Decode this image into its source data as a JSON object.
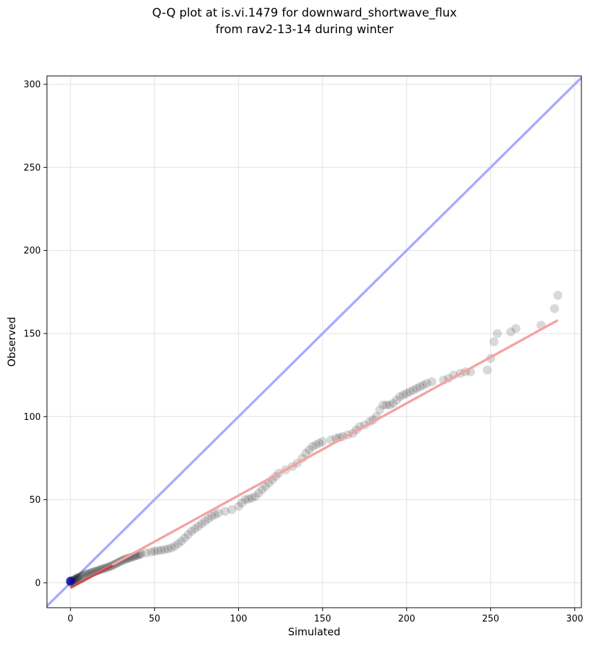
{
  "chart_data": {
    "type": "scatter",
    "title": "Q-Q plot at is.vi.1479 for downward_shortwave_flux",
    "subtitle": "from rav2-13-14 during winter",
    "xlabel": "Simulated",
    "ylabel": "Observed",
    "xlim": [
      -14,
      304
    ],
    "ylim": [
      -15,
      305
    ],
    "xticks": [
      0,
      50,
      100,
      150,
      200,
      250,
      300
    ],
    "yticks": [
      0,
      50,
      100,
      150,
      200,
      250,
      300
    ],
    "grid": true,
    "reference_line": {
      "from": [
        -14,
        -14
      ],
      "to": [
        304,
        304
      ],
      "color": "#aaaaff"
    },
    "fit_line": {
      "from": [
        0,
        -3
      ],
      "to": [
        290,
        158
      ],
      "color": "#f4a3a3"
    },
    "colors": {
      "points": "#000000",
      "blue_point": "#0000aa",
      "red_seg": "#aa0000"
    },
    "points": [
      [
        0,
        0
      ],
      [
        0.5,
        0.5
      ],
      [
        1,
        1
      ],
      [
        1.5,
        1.2
      ],
      [
        2,
        1.5
      ],
      [
        2.5,
        2
      ],
      [
        3,
        2.2
      ],
      [
        3.5,
        2.5
      ],
      [
        4,
        2.8
      ],
      [
        4.5,
        3
      ],
      [
        5,
        3.3
      ],
      [
        6,
        3.8
      ],
      [
        7,
        4.2
      ],
      [
        8,
        4.6
      ],
      [
        9,
        5
      ],
      [
        10,
        5.3
      ],
      [
        11,
        5.6
      ],
      [
        12,
        6
      ],
      [
        13,
        6.3
      ],
      [
        14,
        6.6
      ],
      [
        15,
        7
      ],
      [
        16,
        7.3
      ],
      [
        17,
        7.6
      ],
      [
        18,
        8
      ],
      [
        19,
        8.3
      ],
      [
        20,
        8.6
      ],
      [
        21,
        9
      ],
      [
        22,
        9.3
      ],
      [
        23,
        9.7
      ],
      [
        24,
        10
      ],
      [
        25,
        10.5
      ],
      [
        26,
        11
      ],
      [
        27,
        11.5
      ],
      [
        28,
        12
      ],
      [
        29,
        12.5
      ],
      [
        30,
        13
      ],
      [
        31,
        13.5
      ],
      [
        32,
        14
      ],
      [
        33,
        14.3
      ],
      [
        34,
        14.6
      ],
      [
        35,
        15
      ],
      [
        36,
        15.3
      ],
      [
        37,
        15.6
      ],
      [
        38,
        16
      ],
      [
        39,
        16.3
      ],
      [
        40,
        16.6
      ],
      [
        41,
        17
      ],
      [
        42,
        17.3
      ],
      [
        45,
        18
      ],
      [
        48,
        18.5
      ],
      [
        50,
        19
      ],
      [
        52,
        19.3
      ],
      [
        54,
        19.6
      ],
      [
        56,
        20
      ],
      [
        58,
        20.3
      ],
      [
        60,
        21
      ],
      [
        62,
        22
      ],
      [
        64,
        23.5
      ],
      [
        66,
        25
      ],
      [
        68,
        27
      ],
      [
        70,
        29
      ],
      [
        72,
        31
      ],
      [
        74,
        32.5
      ],
      [
        76,
        34
      ],
      [
        78,
        35.5
      ],
      [
        80,
        37
      ],
      [
        82,
        38.5
      ],
      [
        84,
        40
      ],
      [
        86,
        41
      ],
      [
        88,
        42
      ],
      [
        92,
        43
      ],
      [
        96,
        44
      ],
      [
        100,
        46
      ],
      [
        102,
        48
      ],
      [
        104,
        50
      ],
      [
        106,
        50.5
      ],
      [
        108,
        51
      ],
      [
        110,
        52
      ],
      [
        112,
        54
      ],
      [
        114,
        56
      ],
      [
        116,
        58
      ],
      [
        118,
        60
      ],
      [
        120,
        62
      ],
      [
        122,
        64
      ],
      [
        124,
        66
      ],
      [
        128,
        68
      ],
      [
        132,
        70
      ],
      [
        135,
        72
      ],
      [
        138,
        75
      ],
      [
        140,
        78
      ],
      [
        142,
        80
      ],
      [
        144,
        82
      ],
      [
        146,
        83
      ],
      [
        148,
        84
      ],
      [
        150,
        85
      ],
      [
        155,
        86
      ],
      [
        158,
        87
      ],
      [
        160,
        87.5
      ],
      [
        162,
        88
      ],
      [
        165,
        89
      ],
      [
        168,
        90
      ],
      [
        170,
        92
      ],
      [
        172,
        94
      ],
      [
        175,
        95
      ],
      [
        178,
        97
      ],
      [
        180,
        98
      ],
      [
        182,
        100
      ],
      [
        184,
        104
      ],
      [
        186,
        107
      ],
      [
        188,
        107
      ],
      [
        190,
        107
      ],
      [
        192,
        108
      ],
      [
        194,
        110
      ],
      [
        196,
        112
      ],
      [
        198,
        113
      ],
      [
        200,
        114
      ],
      [
        202,
        115
      ],
      [
        204,
        116
      ],
      [
        206,
        117
      ],
      [
        208,
        118
      ],
      [
        210,
        119
      ],
      [
        212,
        120
      ],
      [
        215,
        121
      ],
      [
        222,
        122
      ],
      [
        225,
        123
      ],
      [
        228,
        125
      ],
      [
        232,
        126
      ],
      [
        235,
        127
      ],
      [
        238,
        127
      ],
      [
        248,
        128
      ],
      [
        250,
        135
      ],
      [
        252,
        145
      ],
      [
        254,
        150
      ],
      [
        262,
        151
      ],
      [
        265,
        153
      ],
      [
        280,
        155
      ],
      [
        288,
        165
      ],
      [
        290,
        173
      ]
    ]
  }
}
